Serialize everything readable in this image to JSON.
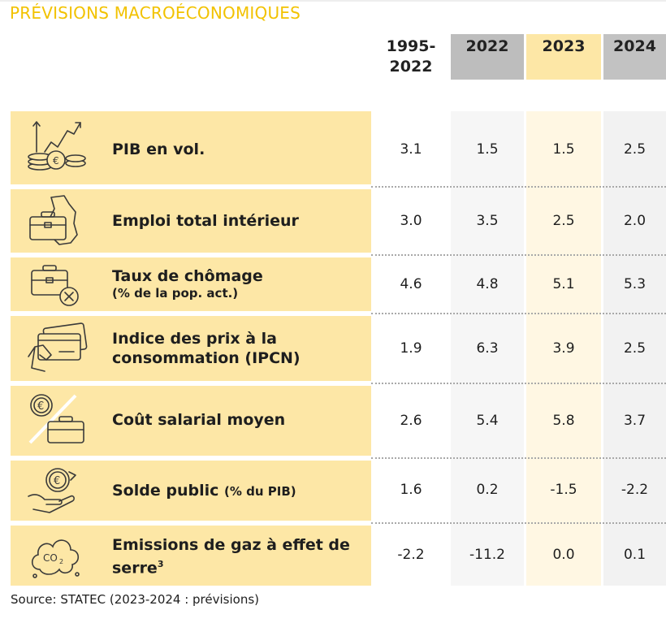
{
  "title": "PRÉVISIONS MACROÉCONOMIQUES",
  "columns": [
    {
      "label": "1995-\n2022"
    },
    {
      "label": "2022"
    },
    {
      "label": "2023"
    },
    {
      "label": "2024"
    }
  ],
  "rows": [
    {
      "label": "PIB en vol.",
      "sub": "",
      "icon": "gdp-growth-icon",
      "values": [
        "3.1",
        "1.5",
        "1.5",
        "2.5"
      ]
    },
    {
      "label": "Emploi total intérieur",
      "sub": "",
      "icon": "briefcase-map-icon",
      "values": [
        "3.0",
        "3.5",
        "2.5",
        "2.0"
      ]
    },
    {
      "label": "Taux de chômage",
      "sub": "(% de la pop. act.)",
      "icon": "briefcase-cross-icon",
      "values": [
        "4.6",
        "4.8",
        "5.1",
        "5.3"
      ]
    },
    {
      "label": "Indice des prix à la consommation (IPCN)",
      "sub": "",
      "icon": "credit-card-hand-icon",
      "values": [
        "1.9",
        "6.3",
        "3.9",
        "2.5"
      ]
    },
    {
      "label": "Coût salarial moyen",
      "sub": "",
      "icon": "coin-briefcase-icon",
      "values": [
        "2.6",
        "5.4",
        "5.8",
        "3.7"
      ]
    },
    {
      "label": "Solde public",
      "sub": "(% du PIB)",
      "icon": "hand-coin-icon",
      "values": [
        "1.6",
        "0.2",
        "-1.5",
        "-2.2"
      ]
    },
    {
      "label": "Emissions de gaz à effet de serre",
      "sup": "3",
      "icon": "co2-cloud-icon",
      "values": [
        "-2.2",
        "-11.2",
        "0.0",
        "0.1"
      ]
    }
  ],
  "source": "Source: STATEC (2023-2024 : prévisions)",
  "colors": {
    "title": "#f2c200",
    "label_bg": "#fde7a6",
    "col_2022": "#bdbdbd",
    "col_2023": "#fde7a6",
    "col_2024": "#c2c2c2"
  }
}
